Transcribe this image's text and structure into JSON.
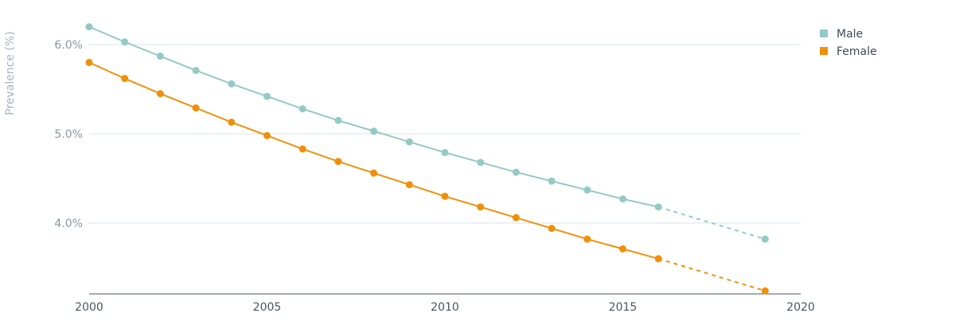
{
  "chart_data": {
    "type": "line",
    "ylabel": "Prevalence (%)",
    "xlabel": "",
    "xlim": [
      2000,
      2020
    ],
    "ylim": [
      3.2,
      6.5
    ],
    "x_ticks": [
      2000,
      2005,
      2010,
      2015,
      2020
    ],
    "x_tick_labels": [
      "2000",
      "2005",
      "2010",
      "2015",
      "2020"
    ],
    "y_ticks": [
      4.0,
      5.0,
      6.0
    ],
    "y_tick_labels": [
      "4.0%",
      "5.0%",
      "6.0%"
    ],
    "grid": "horizontal",
    "legend_position": "top-right",
    "projection_style": "dashed",
    "series": [
      {
        "name": "Male",
        "color": "#93cac6",
        "x": [
          2000,
          2001,
          2002,
          2003,
          2004,
          2005,
          2006,
          2007,
          2008,
          2009,
          2010,
          2011,
          2012,
          2013,
          2014,
          2015,
          2016,
          2019
        ],
        "values": [
          6.2,
          6.03,
          5.87,
          5.71,
          5.56,
          5.42,
          5.28,
          5.15,
          5.03,
          4.91,
          4.79,
          4.68,
          4.57,
          4.47,
          4.37,
          4.27,
          4.18,
          3.82
        ],
        "dashed_from_x": 2016
      },
      {
        "name": "Female",
        "color": "#f0900a",
        "x": [
          2000,
          2001,
          2002,
          2003,
          2004,
          2005,
          2006,
          2007,
          2008,
          2009,
          2010,
          2011,
          2012,
          2013,
          2014,
          2015,
          2016,
          2019
        ],
        "values": [
          5.8,
          5.62,
          5.45,
          5.29,
          5.13,
          4.98,
          4.83,
          4.69,
          4.56,
          4.43,
          4.3,
          4.18,
          4.06,
          3.94,
          3.82,
          3.71,
          3.6,
          3.24
        ],
        "dashed_from_x": 2016
      }
    ]
  }
}
